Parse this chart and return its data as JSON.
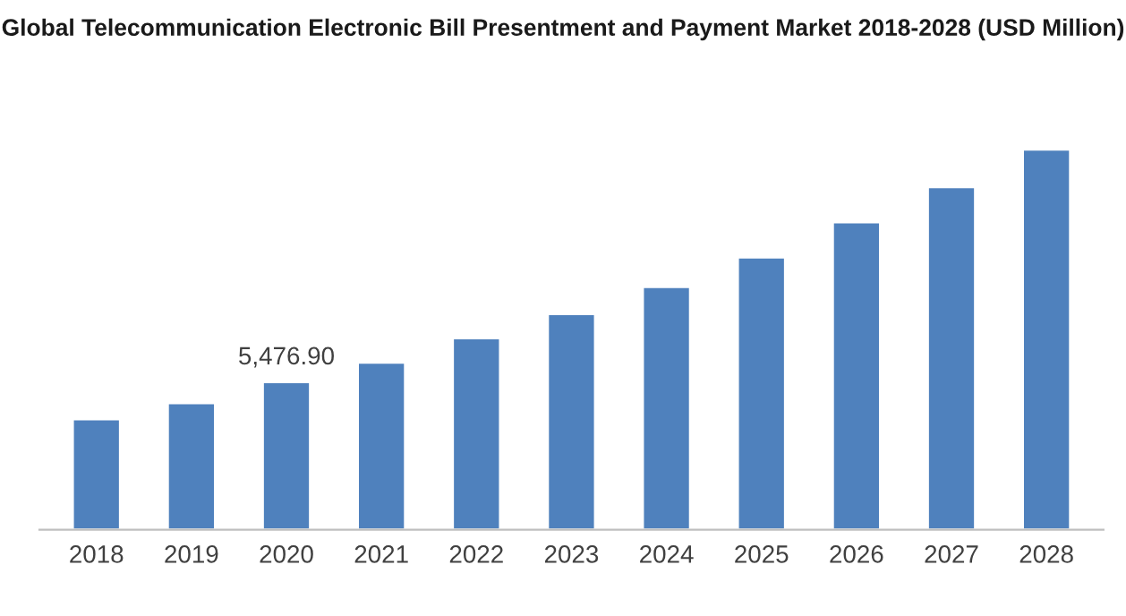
{
  "chart_data": {
    "type": "bar",
    "title": "Global Telecommunication Electronic Bill Presentment and Payment Market 2018-2028 (USD Million)",
    "categories": [
      "2018",
      "2019",
      "2020",
      "2021",
      "2022",
      "2023",
      "2024",
      "2025",
      "2026",
      "2027",
      "2028"
    ],
    "values": [
      4100,
      4700,
      5476.9,
      6200,
      7100,
      8000,
      9000,
      10100,
      11400,
      12700,
      14100
    ],
    "value_labels": [
      null,
      null,
      "5,476.90",
      null,
      null,
      null,
      null,
      null,
      null,
      null,
      null
    ],
    "color": "#4f81bd"
  }
}
